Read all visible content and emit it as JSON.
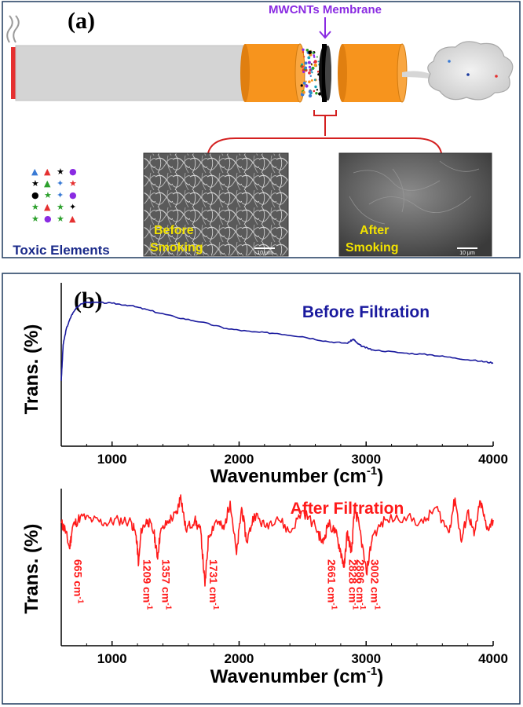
{
  "panel_a": {
    "label": "(a)",
    "membrane_label": "MWCNTs Membrane",
    "toxic_label": "Toxic Elements",
    "sem_before": {
      "caption_line1": "Before",
      "caption_line2": "Smoking",
      "scale": "10 μm"
    },
    "sem_after": {
      "caption_line1": "After",
      "caption_line2": "Smoking",
      "scale": "10 μm"
    }
  },
  "panel_b": {
    "label": "(b)",
    "ylabel": "Trans. (%)",
    "xlabel_top": "Wavenumber (cm",
    "xlabel_bottom": "Wavenumber (cm",
    "xlabel_sup": "-1",
    "xlabel_close": ")"
  },
  "colors": {
    "before": "#1a1a9e",
    "after": "#ff1a1a",
    "membrane_purple": "#8a2be2",
    "orange": "#f7941d",
    "bracket": "#d42020"
  },
  "chart_data": [
    {
      "type": "line",
      "title": "Before Filtration",
      "xlabel": "Wavenumber (cm-1)",
      "ylabel": "Trans. (%)",
      "xlim": [
        600,
        4000
      ],
      "ylim": [
        0,
        100
      ],
      "xticks": [
        1000,
        2000,
        3000,
        4000
      ],
      "series": [
        {
          "name": "Before Filtration",
          "x": [
            600,
            615,
            640,
            680,
            720,
            780,
            850,
            1000,
            1150,
            1300,
            1500,
            1700,
            1900,
            2100,
            2300,
            2500,
            2700,
            2850,
            2900,
            2930,
            2970,
            3050,
            3300,
            3500,
            3700,
            3900,
            4000
          ],
          "y": [
            40,
            62,
            72,
            80,
            85,
            88,
            88,
            87.5,
            86,
            83,
            79,
            76,
            72,
            70,
            69,
            67,
            64,
            63,
            65.5,
            63,
            61,
            59,
            57,
            56,
            54,
            52,
            51
          ]
        }
      ]
    },
    {
      "type": "line",
      "title": "After Filtration",
      "xlabel": "Wavenumber (cm-1)",
      "ylabel": "Trans. (%)",
      "xlim": [
        600,
        4000
      ],
      "ylim": [
        0,
        100
      ],
      "xticks": [
        1000,
        2000,
        3000,
        4000
      ],
      "series": [
        {
          "name": "After Filtration",
          "x": [
            600,
            630,
            665,
            690,
            750,
            850,
            950,
            1050,
            1150,
            1190,
            1209,
            1230,
            1280,
            1330,
            1357,
            1380,
            1450,
            1510,
            1540,
            1580,
            1650,
            1700,
            1731,
            1760,
            1820,
            1880,
            1930,
            1980,
            2020,
            2060,
            2120,
            2200,
            2300,
            2400,
            2500,
            2600,
            2661,
            2700,
            2760,
            2800,
            2828,
            2850,
            2886,
            2910,
            2950,
            3002,
            3050,
            3150,
            3300,
            3450,
            3550,
            3650,
            3700,
            3750,
            3800,
            3850,
            3900,
            3950,
            4000
          ],
          "y": [
            78,
            74,
            62,
            76,
            82,
            80,
            78,
            80,
            79,
            70,
            52,
            74,
            80,
            72,
            56,
            72,
            80,
            84,
            96,
            74,
            80,
            72,
            38,
            70,
            80,
            74,
            92,
            58,
            88,
            66,
            84,
            76,
            82,
            72,
            86,
            76,
            65,
            78,
            72,
            60,
            50,
            72,
            60,
            88,
            74,
            46,
            70,
            80,
            82,
            78,
            88,
            72,
            94,
            66,
            86,
            70,
            92,
            74,
            80
          ]
        }
      ],
      "annotations": [
        "665 cm-1",
        "1209 cm-1",
        "1357 cm-1",
        "1731 cm-1",
        "2661 cm-1",
        "2828 cm-1",
        "2886 cm-1",
        "3002 cm-1"
      ]
    }
  ]
}
